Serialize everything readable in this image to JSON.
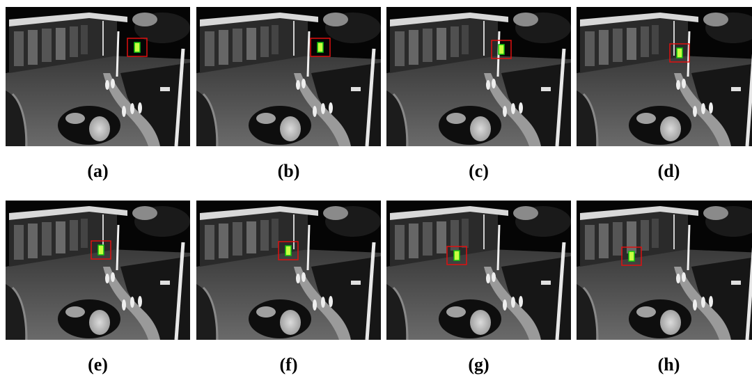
{
  "panels": [
    {
      "label": "(a)"
    },
    {
      "label": "(b)"
    },
    {
      "label": "(c)"
    },
    {
      "label": "(d)"
    },
    {
      "label": "(e)"
    },
    {
      "label": "(f)"
    },
    {
      "label": "(g)"
    },
    {
      "label": "(h)"
    }
  ]
}
